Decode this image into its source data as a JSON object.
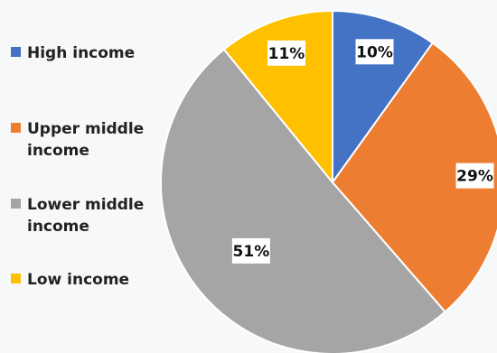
{
  "chart_data": {
    "type": "pie",
    "title": "",
    "categories": [
      "High income",
      "Upper middle income",
      "Lower middle income",
      "Low income"
    ],
    "values": [
      10,
      29,
      51,
      11
    ],
    "data_labels": [
      "10%",
      "29%",
      "51%",
      "11%"
    ],
    "colors": [
      "#4472c4",
      "#ed7d31",
      "#a5a5a5",
      "#ffc000"
    ],
    "legend_position": "left",
    "start_angle": "12 o'clock, clockwise"
  },
  "legend": {
    "items": [
      {
        "label": "High income",
        "color": "#4472c4"
      },
      {
        "label": "Upper middle income",
        "color": "#ed7d31"
      },
      {
        "label": "Lower middle income",
        "color": "#a5a5a5"
      },
      {
        "label": "Low income",
        "color": "#ffc000"
      }
    ]
  }
}
